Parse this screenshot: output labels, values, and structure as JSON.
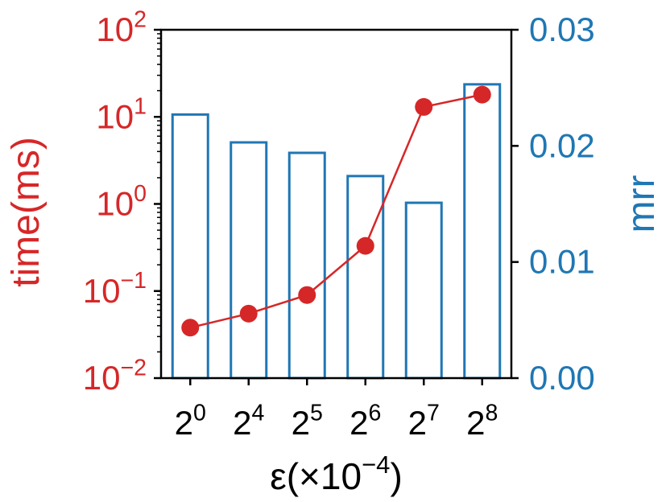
{
  "chart_data": {
    "type": "bar",
    "categories": [
      "2^0",
      "2^4",
      "2^5",
      "2^6",
      "2^7",
      "2^8"
    ],
    "x_tick_labels": [
      {
        "base": "2",
        "exp": "0"
      },
      {
        "base": "2",
        "exp": "4"
      },
      {
        "base": "2",
        "exp": "5"
      },
      {
        "base": "2",
        "exp": "6"
      },
      {
        "base": "2",
        "exp": "7"
      },
      {
        "base": "2",
        "exp": "8"
      }
    ],
    "xlabel": {
      "prefix": "ε(×10",
      "exp": "−4",
      "suffix": ")"
    },
    "series": [
      {
        "axis": "left",
        "type": "line",
        "values": [
          0.038,
          0.055,
          0.09,
          0.33,
          13,
          18
        ],
        "color": "#d62728",
        "marker": "circle"
      },
      {
        "axis": "right",
        "type": "bar",
        "values": [
          0.0227,
          0.0203,
          0.0194,
          0.0174,
          0.0151,
          0.0253
        ],
        "edge_color": "#1f77b4",
        "fill": "none"
      }
    ],
    "left_axis": {
      "label": "time(ms)",
      "scale": "log",
      "ylim": [
        0.01,
        100
      ],
      "ticks": [
        {
          "base": "10",
          "exp": "2",
          "value": 100
        },
        {
          "base": "10",
          "exp": "1",
          "value": 10
        },
        {
          "base": "10",
          "exp": "0",
          "value": 1
        },
        {
          "base": "10",
          "exp": "−1",
          "value": 0.1
        },
        {
          "base": "10",
          "exp": "−2",
          "value": 0.01
        }
      ],
      "color": "#d62728"
    },
    "right_axis": {
      "label": "mrr",
      "scale": "linear",
      "ylim": [
        0,
        0.03
      ],
      "ticks": [
        "0.03",
        "0.02",
        "0.01",
        "0.00"
      ],
      "tick_values": [
        0.03,
        0.02,
        0.01,
        0.0
      ],
      "color": "#1f77b4"
    },
    "grid": false,
    "legend": false
  }
}
